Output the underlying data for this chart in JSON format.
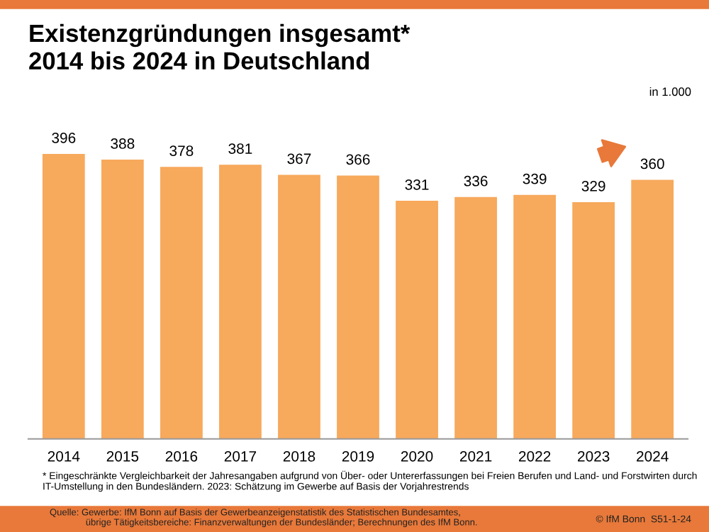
{
  "chart_data": {
    "type": "bar",
    "title": "Existenzgründungen insgesamt*\n2014 bis 2024 in Deutschland",
    "ylabel": "in 1.000",
    "categories": [
      "2014",
      "2015",
      "2016",
      "2017",
      "2018",
      "2019",
      "2020",
      "2021",
      "2022",
      "2023",
      "2024"
    ],
    "values": [
      396,
      388,
      378,
      381,
      367,
      366,
      331,
      336,
      339,
      329,
      360
    ],
    "color": "#f7a95c",
    "data_labels": true,
    "grid": false,
    "legend": false,
    "annotations": [
      "* Eingeschränkte Vergleichbarkeit der Jahresangaben aufgrund von Über- oder Untererfassungen bei Freien Berufen und Land- und Forstwirten durch IT-Umstellung in den Bundesländern. 2023: Schätzung im Gewerbe auf Basis der Vorjahrestrends",
      "Quelle: Gewerbe: IfM Bonn auf Basis der Gewerbeanzeigenstatistik des Statistischen Bundesamtes,\n              übrige Tätigkeitsbereiche: Finanzverwaltungen der Bundesländer; Berechnungen des IfM Bonn.",
      "© IfM Bonn  S51-1-24"
    ]
  }
}
